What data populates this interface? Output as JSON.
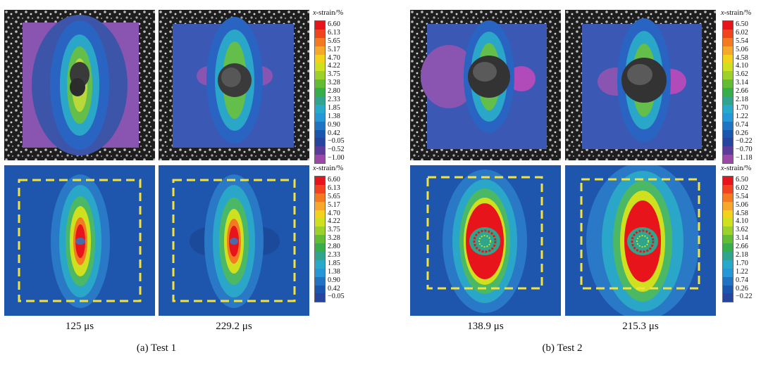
{
  "colorbar_title": {
    "var": "x",
    "rest": "-strain/%"
  },
  "test1": {
    "caption": "(a) Test 1",
    "times": [
      "125 μs",
      "229.2 μs"
    ],
    "dic_ticks": [
      "6.60",
      "6.13",
      "5.65",
      "5.17",
      "4.70",
      "4.22",
      "3.75",
      "3.28",
      "2.80",
      "2.33",
      "1.85",
      "1.38",
      "0.90",
      "0.42",
      "−0.05",
      "−0.52",
      "−1.00"
    ],
    "sim_ticks": [
      "6.60",
      "6.13",
      "5.65",
      "5.17",
      "4.70",
      "4.22",
      "3.75",
      "3.28",
      "2.80",
      "2.33",
      "1.85",
      "1.38",
      "0.90",
      "0.42",
      "−0.05"
    ]
  },
  "test2": {
    "caption": "(b) Test 2",
    "times": [
      "138.9 μs",
      "215.3 μs"
    ],
    "dic_ticks": [
      "6.50",
      "6.02",
      "5.54",
      "5.06",
      "4.58",
      "4.10",
      "3.62",
      "3.14",
      "2.66",
      "2.18",
      "1.70",
      "1.22",
      "0.74",
      "0.26",
      "−0.22",
      "−0.70",
      "−1.18"
    ],
    "sim_ticks": [
      "6.50",
      "6.02",
      "5.54",
      "5.06",
      "4.58",
      "4.10",
      "3.62",
      "3.14",
      "2.66",
      "2.18",
      "1.70",
      "1.22",
      "0.74",
      "0.26",
      "−0.22"
    ]
  },
  "palette": [
    "#e8141c",
    "#f0431e",
    "#f47a22",
    "#f6a82a",
    "#f3d31a",
    "#cfe01e",
    "#9bd12a",
    "#62bd35",
    "#37ad4c",
    "#2fa58e",
    "#29a9c9",
    "#2596d6",
    "#1f73c2",
    "#1c55ae",
    "#27459e",
    "#5a3d9a",
    "#9a4aa6"
  ]
}
